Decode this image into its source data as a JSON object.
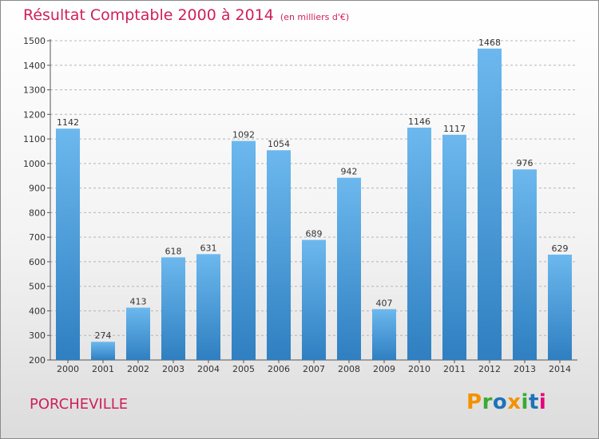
{
  "header": {
    "title": "Résultat Comptable 2000 à 2014",
    "subtitle": "(en milliers d'€)"
  },
  "footer": {
    "place": "PORCHEVILLE",
    "logo": "Proxiti",
    "logo_colors": [
      "#f39200",
      "#3aaa35",
      "#1f73b7",
      "#f39200",
      "#3aaa35",
      "#1f73b7",
      "#e6007e"
    ]
  },
  "chart_data": {
    "type": "bar",
    "title": "Résultat Comptable 2000 à 2014",
    "subtitle": "(en milliers d'€)",
    "categories": [
      "2000",
      "2001",
      "2002",
      "2003",
      "2004",
      "2005",
      "2006",
      "2007",
      "2008",
      "2009",
      "2010",
      "2011",
      "2012",
      "2013",
      "2014"
    ],
    "values": [
      1142,
      274,
      413,
      618,
      631,
      1092,
      1054,
      689,
      942,
      407,
      1146,
      1117,
      1468,
      976,
      629
    ],
    "ylim": [
      200,
      1500
    ],
    "yticks": [
      200,
      300,
      400,
      500,
      600,
      700,
      800,
      900,
      1000,
      1100,
      1200,
      1300,
      1400,
      1500
    ],
    "grid": "horizontal-dashed",
    "bar_color_top": "#6cb8ee",
    "bar_color_bottom": "#2f7fc1"
  }
}
